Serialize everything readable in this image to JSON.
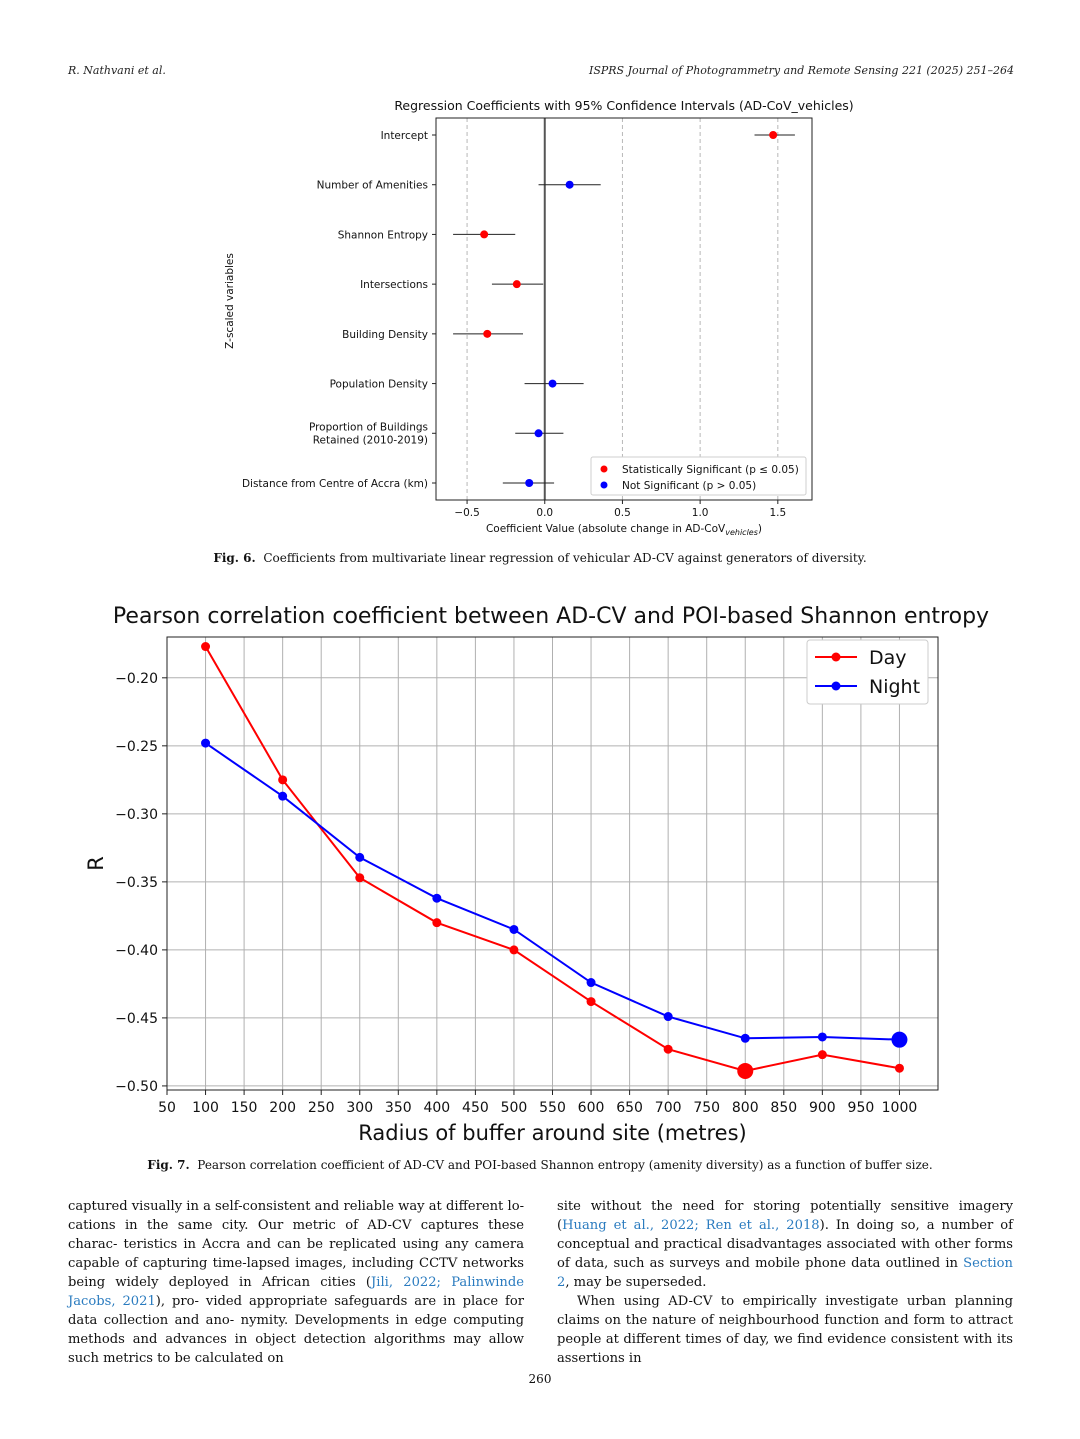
{
  "header": {
    "left": "R. Nathvani et al.",
    "right": "ISPRS Journal of Photogrammetry and Remote Sensing 221 (2025) 251–264"
  },
  "fig6": {
    "caption_label": "Fig. 6.",
    "caption_text": "Coefficients from multivariate linear regression of vehicular AD-CV against generators of diversity."
  },
  "fig7": {
    "caption_label": "Fig. 7.",
    "caption_text": "Pearson correlation coefficient of AD-CV and POI-based Shannon entropy (amenity diversity) as a function of buffer size."
  },
  "chart_data": [
    {
      "type": "scatter",
      "title": "Regression Coefficients with 95% Confidence Intervals (AD-CoV_vehicles)",
      "xlabel": "Coefficient Value (absolute change in AD-CoV",
      "xlabel_sub": "vehicles",
      "xlabel_end": ")",
      "ylabel": "Z-scaled variables",
      "xlim": [
        -0.7,
        1.72
      ],
      "xticks": [
        -0.5,
        0.0,
        0.5,
        1.0,
        1.5
      ],
      "xtick_labels": [
        "−0.5",
        "0.0",
        "0.5",
        "1.0",
        "1.5"
      ],
      "grid": "vertical dashed",
      "legend_position": "lower-right",
      "legend": [
        {
          "label": "Statistically Significant (p ≤ 0.05)",
          "color": "#ff0000"
        },
        {
          "label": "Not Significant (p > 0.05)",
          "color": "#0000ff"
        }
      ],
      "points": [
        {
          "label": "Intercept",
          "label2": "",
          "coef": 1.47,
          "lo": 1.35,
          "hi": 1.61,
          "significant": true
        },
        {
          "label": "Number of Amenities",
          "label2": "",
          "coef": 0.16,
          "lo": -0.04,
          "hi": 0.36,
          "significant": false
        },
        {
          "label": "Shannon Entropy",
          "label2": "",
          "coef": -0.39,
          "lo": -0.59,
          "hi": -0.19,
          "significant": true
        },
        {
          "label": "Intersections",
          "label2": "",
          "coef": -0.18,
          "lo": -0.34,
          "hi": -0.01,
          "significant": true
        },
        {
          "label": "Building Density",
          "label2": "",
          "coef": -0.37,
          "lo": -0.59,
          "hi": -0.14,
          "significant": true
        },
        {
          "label": "Population Density",
          "label2": "",
          "coef": 0.05,
          "lo": -0.13,
          "hi": 0.25,
          "significant": false
        },
        {
          "label": "Proportion of Buildings",
          "label2": "Retained (2010-2019)",
          "coef": -0.04,
          "lo": -0.19,
          "hi": 0.12,
          "significant": false
        },
        {
          "label": "Distance from Centre of Accra (km)",
          "label2": "",
          "coef": -0.1,
          "lo": -0.27,
          "hi": 0.06,
          "significant": false
        }
      ]
    },
    {
      "type": "line",
      "title": "Pearson correlation coefficient between AD-CV and POI-based Shannon entropy",
      "xlabel": "Radius of buffer around site (metres)",
      "ylabel": "R",
      "xlim": [
        50,
        1050
      ],
      "ylim": [
        -0.503,
        -0.17
      ],
      "xticks": [
        50,
        100,
        150,
        200,
        250,
        300,
        350,
        400,
        450,
        500,
        550,
        600,
        650,
        700,
        750,
        800,
        850,
        900,
        950,
        1000
      ],
      "yticks": [
        -0.2,
        -0.25,
        -0.3,
        -0.35,
        -0.4,
        -0.45,
        -0.5
      ],
      "ytick_labels": [
        "−0.20",
        "−0.25",
        "−0.30",
        "−0.35",
        "−0.40",
        "−0.45",
        "−0.50"
      ],
      "grid": true,
      "legend_position": "top-right",
      "x": [
        100,
        200,
        300,
        400,
        500,
        600,
        700,
        800,
        900,
        1000
      ],
      "series": [
        {
          "name": "Day",
          "color": "#ff0000",
          "values": [
            -0.177,
            -0.275,
            -0.347,
            -0.38,
            -0.4,
            -0.438,
            -0.473,
            -0.489,
            -0.477,
            -0.487
          ],
          "highlight_index": 7
        },
        {
          "name": "Night",
          "color": "#0000ff",
          "values": [
            -0.248,
            -0.287,
            -0.332,
            -0.362,
            -0.385,
            -0.424,
            -0.449,
            -0.465,
            -0.464,
            -0.466
          ],
          "highlight_index": 9
        }
      ]
    }
  ],
  "body": {
    "left_lines": [
      "captured visually in a self-consistent and reliable way at different lo-",
      "cations in the same city. Our metric of AD-CV captures these charac-",
      "teristics in Accra and can be replicated using any camera capable of",
      "capturing time-lapsed images, including CCTV networks being widely",
      "deployed in African cities (",
      "Jili, 2022; Palinwinde Jacobs, 2021",
      "), pro-",
      "vided appropriate safeguards are in place for data collection and ano-",
      "nymity. Developments in edge computing methods and advances in",
      "object detection algorithms may allow such metrics to be calculated on"
    ],
    "right_p1": {
      "a": "site without the need for storing potentially sensitive imagery (",
      "link1": "Huang et al., 2022; Ren et al., 2018",
      "b": "). In doing so, a number of conceptual and practical disadvantages associated with other forms of data, such as surveys and mobile phone data outlined in ",
      "link2": "Section 2",
      "c": ", may be superseded."
    },
    "right_p2": "When using AD-CV to empirically investigate urban planning claims on the nature of neighbourhood function and form to attract people at different times of day, we find evidence consistent with its assertions in"
  },
  "page_number": "260"
}
